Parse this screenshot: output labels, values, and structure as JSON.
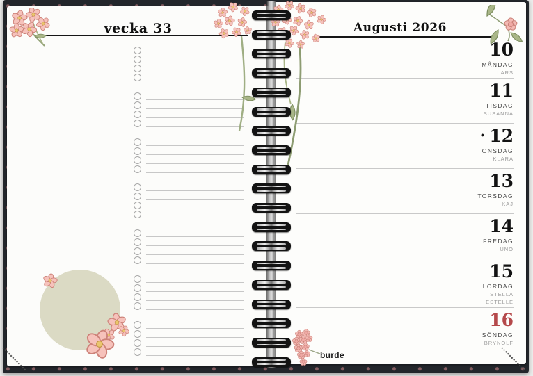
{
  "planner": {
    "brand": "burde",
    "left_page": {
      "header": "vecka 33",
      "checklist": {
        "groups": 7,
        "rows_per_group": 4
      }
    },
    "right_page": {
      "header": "Augusti 2026",
      "days": [
        {
          "date": "10",
          "weekday": "MÅNDAG",
          "namedays": [
            "LARS"
          ]
        },
        {
          "date": "11",
          "weekday": "TISDAG",
          "namedays": [
            "SUSANNA"
          ]
        },
        {
          "date": "12",
          "weekday": "ONSDAG",
          "namedays": [
            "KLARA"
          ],
          "moon_marker": "●"
        },
        {
          "date": "13",
          "weekday": "TORSDAG",
          "namedays": [
            "KAJ"
          ]
        },
        {
          "date": "14",
          "weekday": "FREDAG",
          "namedays": [
            "UNO"
          ]
        },
        {
          "date": "15",
          "weekday": "LÖRDAG",
          "namedays": [
            "STELLA",
            "ESTELLE"
          ]
        },
        {
          "date": "16",
          "weekday": "SÖNDAG",
          "namedays": [
            "BRYNOLF"
          ],
          "holiday": true
        }
      ]
    },
    "spiral": {
      "loops": 19
    },
    "colors": {
      "sunday_red": "#b5494b",
      "page_white": "#fcfcfa",
      "cover_dark": "#23262b",
      "sage_circle": "#dbdac4",
      "flower_pink": "#f6c2bb",
      "flower_outline": "#cd8279",
      "leaf_green": "#a9b688"
    }
  }
}
